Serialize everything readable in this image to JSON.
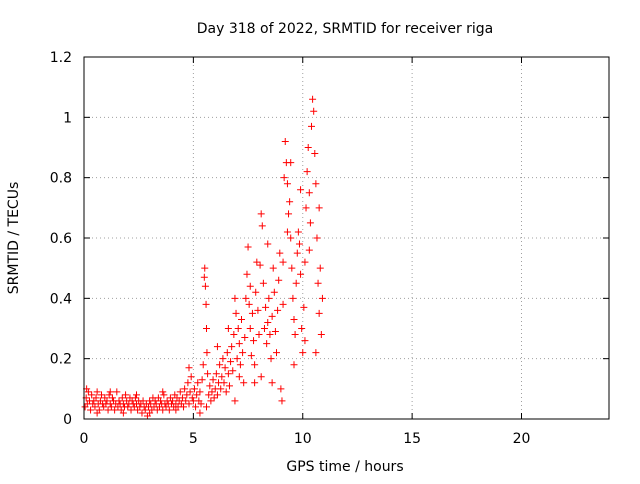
{
  "chart_data": {
    "type": "scatter",
    "title": "Day 318 of 2022, SRMTID for receiver riga",
    "xlabel": "GPS time / hours",
    "ylabel": "SRMTID / TECUs",
    "xlim": [
      0,
      24
    ],
    "ylim": [
      0,
      1.2
    ],
    "x_ticks": [
      0,
      5,
      10,
      15,
      20
    ],
    "x_tick_labels": [
      "0",
      "5",
      "10",
      "15",
      "20"
    ],
    "y_ticks": [
      0,
      0.2,
      0.4,
      0.6,
      0.8,
      1.0,
      1.2
    ],
    "y_tick_labels": [
      "0",
      "0.2",
      "0.4",
      "0.6",
      "0.8",
      "1",
      "1.2"
    ],
    "grid": true,
    "marker": "+",
    "series": [
      {
        "name": "SRMTID",
        "color": "#ff0000",
        "points": [
          [
            0.05,
            0.04
          ],
          [
            0.1,
            0.07
          ],
          [
            0.15,
            0.05
          ],
          [
            0.2,
            0.09
          ],
          [
            0.25,
            0.06
          ],
          [
            0.3,
            0.03
          ],
          [
            0.35,
            0.08
          ],
          [
            0.4,
            0.05
          ],
          [
            0.45,
            0.06
          ],
          [
            0.5,
            0.04
          ],
          [
            0.55,
            0.07
          ],
          [
            0.6,
            0.09
          ],
          [
            0.65,
            0.05
          ],
          [
            0.7,
            0.03
          ],
          [
            0.75,
            0.06
          ],
          [
            0.8,
            0.08
          ],
          [
            0.85,
            0.05
          ],
          [
            0.9,
            0.04
          ],
          [
            0.95,
            0.07
          ],
          [
            1.0,
            0.05
          ],
          [
            1.05,
            0.06
          ],
          [
            1.1,
            0.03
          ],
          [
            1.15,
            0.08
          ],
          [
            1.2,
            0.05
          ],
          [
            1.25,
            0.04
          ],
          [
            1.3,
            0.07
          ],
          [
            1.35,
            0.06
          ],
          [
            1.4,
            0.03
          ],
          [
            1.45,
            0.05
          ],
          [
            1.5,
            0.09
          ],
          [
            1.55,
            0.04
          ],
          [
            1.6,
            0.06
          ],
          [
            1.65,
            0.05
          ],
          [
            1.7,
            0.03
          ],
          [
            1.75,
            0.07
          ],
          [
            1.8,
            0.05
          ],
          [
            1.85,
            0.04
          ],
          [
            1.9,
            0.08
          ],
          [
            1.95,
            0.06
          ],
          [
            2.0,
            0.04
          ],
          [
            2.05,
            0.05
          ],
          [
            2.1,
            0.07
          ],
          [
            2.15,
            0.03
          ],
          [
            2.2,
            0.06
          ],
          [
            2.25,
            0.05
          ],
          [
            2.3,
            0.04
          ],
          [
            2.35,
            0.07
          ],
          [
            2.4,
            0.05
          ],
          [
            2.45,
            0.03
          ],
          [
            2.5,
            0.06
          ],
          [
            2.55,
            0.04
          ],
          [
            2.6,
            0.05
          ],
          [
            2.65,
            0.02
          ],
          [
            2.7,
            0.06
          ],
          [
            2.75,
            0.04
          ],
          [
            2.8,
            0.03
          ],
          [
            2.85,
            0.05
          ],
          [
            2.9,
            0.01
          ],
          [
            2.95,
            0.04
          ],
          [
            3.0,
            0.06
          ],
          [
            3.05,
            0.05
          ],
          [
            3.1,
            0.03
          ],
          [
            3.15,
            0.07
          ],
          [
            3.2,
            0.04
          ],
          [
            3.25,
            0.06
          ],
          [
            3.3,
            0.05
          ],
          [
            3.35,
            0.03
          ],
          [
            3.4,
            0.07
          ],
          [
            3.45,
            0.04
          ],
          [
            3.5,
            0.06
          ],
          [
            3.55,
            0.05
          ],
          [
            3.6,
            0.03
          ],
          [
            3.65,
            0.08
          ],
          [
            3.7,
            0.05
          ],
          [
            3.75,
            0.04
          ],
          [
            3.8,
            0.06
          ],
          [
            3.85,
            0.05
          ],
          [
            3.9,
            0.03
          ],
          [
            3.95,
            0.07
          ],
          [
            4.0,
            0.05
          ],
          [
            4.05,
            0.06
          ],
          [
            4.1,
            0.04
          ],
          [
            4.15,
            0.08
          ],
          [
            4.2,
            0.05
          ],
          [
            4.25,
            0.07
          ],
          [
            4.3,
            0.04
          ],
          [
            4.35,
            0.06
          ],
          [
            4.4,
            0.09
          ],
          [
            4.45,
            0.05
          ],
          [
            4.5,
            0.07
          ],
          [
            4.55,
            0.04
          ],
          [
            4.6,
            0.1
          ],
          [
            4.65,
            0.06
          ],
          [
            4.7,
            0.08
          ],
          [
            4.75,
            0.12
          ],
          [
            4.8,
            0.05
          ],
          [
            4.85,
            0.09
          ],
          [
            4.9,
            0.14
          ],
          [
            4.95,
            0.07
          ],
          [
            5.0,
            0.06
          ],
          [
            5.05,
            0.1
          ],
          [
            5.1,
            0.04
          ],
          [
            5.15,
            0.08
          ],
          [
            5.2,
            0.12
          ],
          [
            5.25,
            0.06
          ],
          [
            5.3,
            0.09
          ],
          [
            5.35,
            0.05
          ],
          [
            5.4,
            0.13
          ],
          [
            5.45,
            0.18
          ],
          [
            5.5,
            0.47
          ],
          [
            5.52,
            0.5
          ],
          [
            5.55,
            0.44
          ],
          [
            5.58,
            0.38
          ],
          [
            5.6,
            0.3
          ],
          [
            5.62,
            0.22
          ],
          [
            5.65,
            0.15
          ],
          [
            5.7,
            0.08
          ],
          [
            5.75,
            0.11
          ],
          [
            5.8,
            0.06
          ],
          [
            5.85,
            0.09
          ],
          [
            5.9,
            0.13
          ],
          [
            5.95,
            0.07
          ],
          [
            6.0,
            0.1
          ],
          [
            6.05,
            0.15
          ],
          [
            6.1,
            0.08
          ],
          [
            6.15,
            0.12
          ],
          [
            6.2,
            0.18
          ],
          [
            6.25,
            0.1
          ],
          [
            6.3,
            0.14
          ],
          [
            6.35,
            0.2
          ],
          [
            6.4,
            0.12
          ],
          [
            6.45,
            0.17
          ],
          [
            6.5,
            0.09
          ],
          [
            6.55,
            0.22
          ],
          [
            6.6,
            0.15
          ],
          [
            6.65,
            0.11
          ],
          [
            6.7,
            0.19
          ],
          [
            6.75,
            0.24
          ],
          [
            6.8,
            0.16
          ],
          [
            6.85,
            0.28
          ],
          [
            6.9,
            0.4
          ],
          [
            6.95,
            0.35
          ],
          [
            7.0,
            0.2
          ],
          [
            7.05,
            0.3
          ],
          [
            7.1,
            0.25
          ],
          [
            7.15,
            0.18
          ],
          [
            7.2,
            0.33
          ],
          [
            7.25,
            0.22
          ],
          [
            7.3,
            0.12
          ],
          [
            7.35,
            0.27
          ],
          [
            7.4,
            0.4
          ],
          [
            7.45,
            0.48
          ],
          [
            7.5,
            0.57
          ],
          [
            7.55,
            0.38
          ],
          [
            7.6,
            0.3
          ],
          [
            7.65,
            0.21
          ],
          [
            7.7,
            0.35
          ],
          [
            7.75,
            0.26
          ],
          [
            7.8,
            0.18
          ],
          [
            7.85,
            0.42
          ],
          [
            7.9,
            0.52
          ],
          [
            7.95,
            0.36
          ],
          [
            8.0,
            0.28
          ],
          [
            8.05,
            0.51
          ],
          [
            8.1,
            0.68
          ],
          [
            8.15,
            0.64
          ],
          [
            8.2,
            0.45
          ],
          [
            8.25,
            0.3
          ],
          [
            8.3,
            0.37
          ],
          [
            8.35,
            0.25
          ],
          [
            8.4,
            0.32
          ],
          [
            8.45,
            0.4
          ],
          [
            8.5,
            0.28
          ],
          [
            8.55,
            0.2
          ],
          [
            8.6,
            0.34
          ],
          [
            8.65,
            0.5
          ],
          [
            8.7,
            0.42
          ],
          [
            8.75,
            0.29
          ],
          [
            8.8,
            0.22
          ],
          [
            8.85,
            0.36
          ],
          [
            8.9,
            0.46
          ],
          [
            8.95,
            0.55
          ],
          [
            9.0,
            0.1
          ],
          [
            9.05,
            0.06
          ],
          [
            9.1,
            0.52
          ],
          [
            9.15,
            0.8
          ],
          [
            9.2,
            0.92
          ],
          [
            9.25,
            0.85
          ],
          [
            9.3,
            0.78
          ],
          [
            9.35,
            0.68
          ],
          [
            9.4,
            0.72
          ],
          [
            9.45,
            0.6
          ],
          [
            9.5,
            0.5
          ],
          [
            9.55,
            0.4
          ],
          [
            9.6,
            0.33
          ],
          [
            9.65,
            0.28
          ],
          [
            9.7,
            0.45
          ],
          [
            9.75,
            0.55
          ],
          [
            9.8,
            0.62
          ],
          [
            9.85,
            0.58
          ],
          [
            9.9,
            0.48
          ],
          [
            9.95,
            0.3
          ],
          [
            10.0,
            0.22
          ],
          [
            10.05,
            0.37
          ],
          [
            10.1,
            0.52
          ],
          [
            10.15,
            0.7
          ],
          [
            10.2,
            0.82
          ],
          [
            10.25,
            0.9
          ],
          [
            10.3,
            0.75
          ],
          [
            10.35,
            0.65
          ],
          [
            10.4,
            0.97
          ],
          [
            10.45,
            1.06
          ],
          [
            10.5,
            1.02
          ],
          [
            10.55,
            0.88
          ],
          [
            10.6,
            0.78
          ],
          [
            10.65,
            0.6
          ],
          [
            10.7,
            0.45
          ],
          [
            10.75,
            0.35
          ],
          [
            10.8,
            0.5
          ],
          [
            10.85,
            0.28
          ],
          [
            10.9,
            0.4
          ],
          [
            0.12,
            0.1
          ],
          [
            0.6,
            0.02
          ],
          [
            1.2,
            0.09
          ],
          [
            1.8,
            0.02
          ],
          [
            2.4,
            0.08
          ],
          [
            3.0,
            0.02
          ],
          [
            3.6,
            0.09
          ],
          [
            4.2,
            0.03
          ],
          [
            4.8,
            0.17
          ],
          [
            5.3,
            0.02
          ],
          [
            6.1,
            0.24
          ],
          [
            6.6,
            0.3
          ],
          [
            7.1,
            0.14
          ],
          [
            7.6,
            0.44
          ],
          [
            8.1,
            0.14
          ],
          [
            8.6,
            0.12
          ],
          [
            9.1,
            0.38
          ],
          [
            9.6,
            0.18
          ],
          [
            10.1,
            0.26
          ],
          [
            10.6,
            0.22
          ],
          [
            9.3,
            0.62
          ],
          [
            8.4,
            0.58
          ],
          [
            7.8,
            0.12
          ],
          [
            6.9,
            0.06
          ],
          [
            5.6,
            0.04
          ],
          [
            10.3,
            0.56
          ],
          [
            9.9,
            0.76
          ],
          [
            9.45,
            0.85
          ],
          [
            10.75,
            0.7
          ]
        ]
      }
    ]
  }
}
